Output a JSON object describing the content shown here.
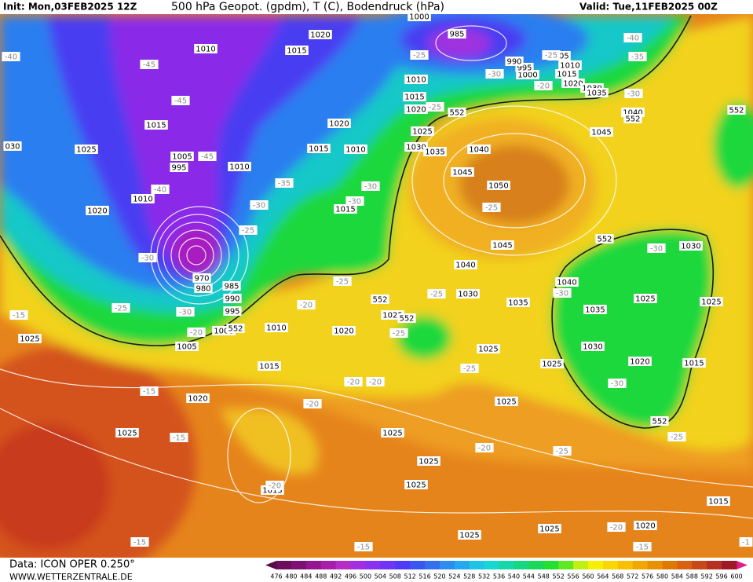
{
  "header": {
    "init": "Init: Mon,03FEB2025 12Z",
    "title": "500 hPa Geopot. (gpdm), T (C), Bodendruck (hPa)",
    "valid": "Valid: Tue,11FEB2025 00Z"
  },
  "footer": {
    "source": "Data: ICON OPER 0.250°",
    "site": "WWW.WETTERZENTRALE.DE"
  },
  "colorbar": {
    "ticks": [
      476,
      480,
      484,
      488,
      492,
      496,
      500,
      504,
      508,
      512,
      516,
      520,
      524,
      528,
      532,
      536,
      540,
      544,
      548,
      552,
      556,
      560,
      564,
      568,
      572,
      576,
      580,
      584,
      588,
      592,
      596,
      600
    ],
    "colors": [
      "#6a0f5a",
      "#7d1173",
      "#94168f",
      "#a81eab",
      "#b62ec4",
      "#a12ee0",
      "#8a32f0",
      "#6e35f5",
      "#4f3bf5",
      "#3a55f0",
      "#3470ee",
      "#2c8cf0",
      "#24a8f0",
      "#1ec4e6",
      "#16d8d0",
      "#14d8a8",
      "#16d880",
      "#18d858",
      "#22e030",
      "#60e820",
      "#c0f010",
      "#f8f000",
      "#f8d800",
      "#f8c000",
      "#f0a800",
      "#e89000",
      "#e07800",
      "#d86010",
      "#c84818",
      "#b83020",
      "#a01828"
    ],
    "low_color": "#5a0a4a",
    "high_color": "#e0208a"
  },
  "map": {
    "pressure_labels": [
      "1020",
      "1015",
      "1010",
      "985",
      "1005",
      "1010",
      "1015",
      "1000",
      "995",
      "990",
      "1020",
      "1030",
      "1035",
      "1010",
      "1015",
      "1020",
      "1015",
      "1025",
      "1045",
      "1040",
      "1025",
      "1030",
      "1035",
      "1040",
      "1020",
      "1015",
      "1010",
      "1005",
      "995",
      "1010",
      "1045",
      "1050",
      "1010",
      "1020",
      "1015",
      "1045",
      "1030",
      "1040",
      "1040",
      "1030",
      "1035",
      "1025",
      "1025",
      "1035",
      "970",
      "980",
      "985",
      "990",
      "995",
      "1000",
      "1010",
      "1020",
      "1025",
      "1025",
      "1030",
      "1020",
      "1015",
      "1025",
      "1005",
      "1025",
      "1015",
      "1020",
      "1025",
      "1025",
      "1025",
      "1025",
      "1025",
      "1015",
      "1015",
      "1025",
      "1020",
      "1025",
      "030",
      "1000"
    ],
    "temperature_labels": [
      "-40",
      "-45",
      "-45",
      "-40",
      "-35",
      "-30",
      "-45",
      "-40",
      "-35",
      "-30",
      "-30",
      "-30",
      "-25",
      "-30",
      "-25",
      "-30",
      "-25",
      "-25",
      "-30",
      "-20",
      "-25",
      "-15",
      "-30",
      "-20",
      "-25",
      "-25",
      "-30",
      "-20",
      "-20",
      "-15",
      "-20",
      "-15",
      "-20",
      "-25",
      "-25",
      "-15",
      "-15",
      "-20",
      "-15",
      "-20",
      "-25",
      "-25",
      "-30",
      "-25",
      "-20",
      "-1"
    ],
    "height_labels": [
      "552",
      "552",
      "552",
      "552",
      "552",
      "552",
      "552",
      "552"
    ]
  }
}
